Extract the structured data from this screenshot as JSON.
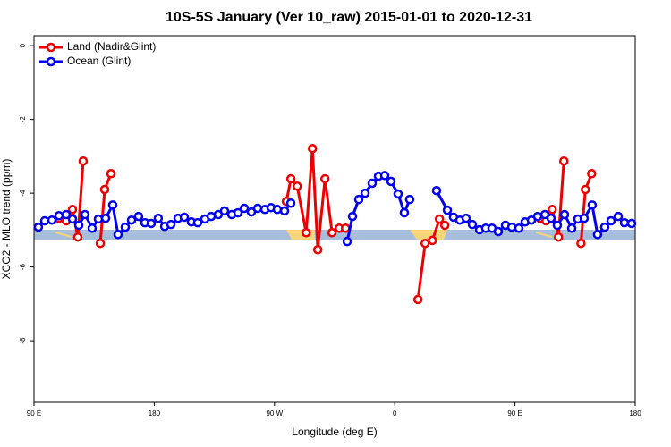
{
  "chart_data": {
    "type": "line",
    "title": "10S-5S January (Ver 10_raw)   2015-01-01 to 2020-12-31",
    "x_label": "Longitude (deg E)",
    "y_label": "XCO2 - MLO trend (ppm)",
    "xlim": [
      90,
      540
    ],
    "ylim": [
      -9.67,
      0.27
    ],
    "xticks": [
      {
        "value": 90,
        "label": "90 E"
      },
      {
        "value": 180,
        "label": "180"
      },
      {
        "value": 270,
        "label": "90 W"
      },
      {
        "value": 360,
        "label": "0"
      },
      {
        "value": 450,
        "label": "90 E"
      },
      {
        "value": 540,
        "label": "180"
      }
    ],
    "yticks": [
      0,
      -2,
      -4,
      -6,
      -8
    ],
    "legend": "top-left",
    "series": [
      {
        "name": "Land (Nadir&Glint)",
        "color": "#ee0000",
        "x": [
          108.7,
          114.1,
          118.8,
          122.8,
          126.8,
          null,
          139.6,
          142.9,
          147.6,
          null,
          278.9,
          282.3,
          287.0,
          293.7,
          298.4,
          302.4,
          307.8,
          313.1,
          318.5,
          323.2,
          null,
          377.4,
          382.8,
          388.2,
          393.5,
          397.5,
          null,
          468.7,
          473.2,
          477.9,
          482.6,
          486.6,
          null,
          499.4,
          502.7,
          507.4
        ],
        "values": [
          -4.68,
          -4.75,
          -4.44,
          -5.19,
          -3.13,
          null,
          -5.36,
          -3.9,
          -3.47,
          null,
          -4.22,
          -3.61,
          -3.81,
          -5.07,
          -2.79,
          -5.53,
          -3.61,
          -5.07,
          -4.95,
          -4.95,
          null,
          -6.88,
          -5.36,
          -5.28,
          -4.7,
          -4.87,
          null,
          -4.68,
          -4.75,
          -4.44,
          -5.19,
          -3.13,
          null,
          -5.36,
          -3.9,
          -3.47
        ]
      },
      {
        "name": "Ocean (Glint)",
        "color": "#0000ee",
        "x": [
          93.3,
          98.0,
          103.4,
          108.7,
          114.1,
          118.8,
          123.5,
          128.2,
          133.5,
          138.2,
          143.6,
          148.9,
          152.9,
          158.3,
          163.0,
          168.3,
          173.0,
          177.7,
          183.0,
          187.8,
          192.5,
          197.8,
          202.5,
          207.8,
          212.5,
          217.9,
          222.6,
          227.9,
          232.6,
          238.0,
          242.7,
          247.4,
          252.7,
          257.4,
          262.8,
          267.4,
          272.1,
          277.5,
          282.2,
          null,
          324.4,
          328.4,
          333.1,
          337.8,
          343.1,
          347.8,
          352.5,
          357.2,
          362.5,
          367.2,
          371.2,
          null,
          391.3,
          399.4,
          404.0,
          408.7,
          413.4,
          418.1,
          423.5,
          428.1,
          432.8,
          437.5,
          442.9,
          447.6,
          452.9,
          457.6,
          462.3,
          467.0,
          472.4,
          477.0,
          481.7,
          487.1,
          492.5,
          497.1,
          501.8,
          507.8,
          511.8,
          517.2,
          521.9,
          527.3,
          531.9,
          537.3
        ],
        "values": [
          -4.92,
          -4.75,
          -4.73,
          -4.61,
          -4.58,
          -4.7,
          -4.87,
          -4.58,
          -4.95,
          -4.7,
          -4.68,
          -4.32,
          -5.12,
          -4.92,
          -4.73,
          -4.63,
          -4.8,
          -4.82,
          -4.68,
          -4.9,
          -4.85,
          -4.68,
          -4.65,
          -4.78,
          -4.8,
          -4.7,
          -4.63,
          -4.58,
          -4.48,
          -4.58,
          -4.53,
          -4.41,
          -4.51,
          -4.41,
          -4.44,
          -4.39,
          -4.44,
          -4.48,
          -4.27,
          null,
          -5.31,
          -4.63,
          -4.17,
          -4.0,
          -3.73,
          -3.54,
          -3.52,
          -3.68,
          -4.02,
          -4.53,
          -4.17,
          null,
          -3.93,
          -4.46,
          -4.65,
          -4.73,
          -4.68,
          -4.85,
          -4.99,
          -4.95,
          -4.95,
          -5.04,
          -4.87,
          -4.92,
          -4.95,
          -4.78,
          -4.73,
          -4.63,
          -4.58,
          -4.68,
          -4.87,
          -4.58,
          -4.95,
          -4.7,
          -4.68,
          -4.32,
          -5.12,
          -4.92,
          -4.75,
          -4.63,
          -4.8,
          -4.82
        ]
      }
    ]
  }
}
